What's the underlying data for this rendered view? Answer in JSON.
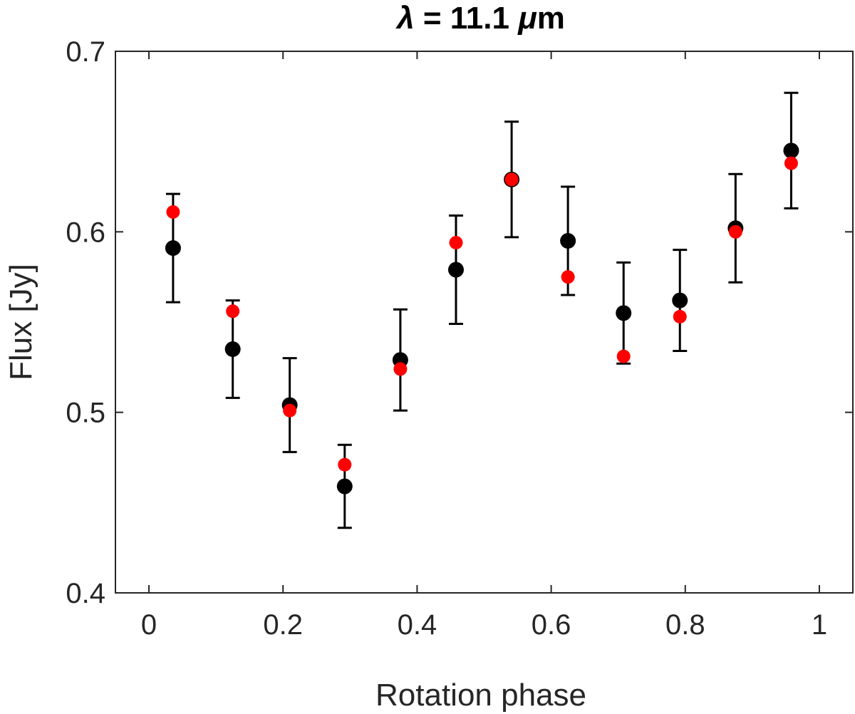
{
  "chart_data": {
    "type": "scatter",
    "title": {
      "symbol": "λ",
      "rest": " = 11.1 ",
      "unit_prefix": "μ",
      "unit_rest": "m"
    },
    "xlabel": "Rotation phase",
    "ylabel": "Flux [Jy]",
    "xlim": [
      -0.05,
      1.05
    ],
    "ylim": [
      0.4,
      0.7
    ],
    "xticks": [
      0,
      0.2,
      0.4,
      0.6,
      0.8,
      1
    ],
    "xtick_labels": [
      "0",
      "0.2",
      "0.4",
      "0.6",
      "0.8",
      "1"
    ],
    "yticks": [
      0.4,
      0.5,
      0.6,
      0.7
    ],
    "ytick_labels": [
      "0.4",
      "0.5",
      "0.6",
      "0.7"
    ],
    "grid": false,
    "box": true,
    "series": [
      {
        "color": "#000000",
        "marker": "circle",
        "x": [
          0.036,
          0.125,
          0.21,
          0.292,
          0.375,
          0.458,
          0.541,
          0.625,
          0.708,
          0.792,
          0.875,
          0.958
        ],
        "y": [
          0.591,
          0.535,
          0.504,
          0.459,
          0.529,
          0.579,
          0.629,
          0.595,
          0.555,
          0.562,
          0.602,
          0.645
        ],
        "error": [
          0.03,
          0.027,
          0.026,
          0.023,
          0.028,
          0.03,
          0.032,
          0.03,
          0.028,
          0.028,
          0.03,
          0.032
        ]
      },
      {
        "color": "#ff0000",
        "marker": "circle",
        "x": [
          0.036,
          0.125,
          0.21,
          0.292,
          0.375,
          0.458,
          0.541,
          0.625,
          0.708,
          0.792,
          0.875,
          0.958
        ],
        "y": [
          0.611,
          0.556,
          0.501,
          0.471,
          0.524,
          0.594,
          0.629,
          0.575,
          0.531,
          0.553,
          0.6,
          0.638
        ]
      }
    ]
  }
}
